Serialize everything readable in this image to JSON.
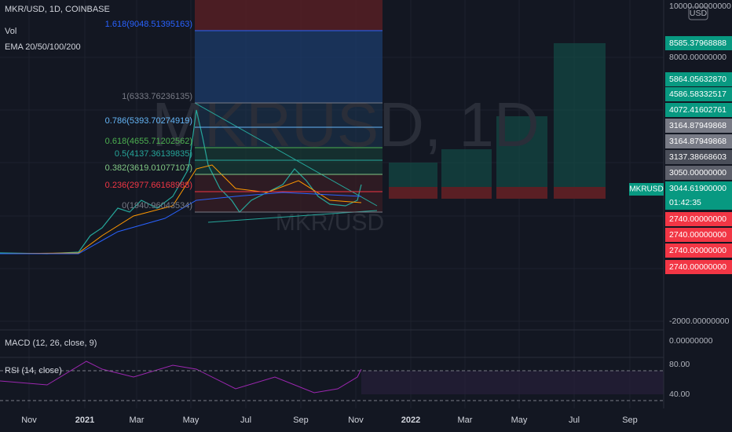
{
  "header": {
    "symbol": "MKR/USD, 1D, COINBASE",
    "volume": "Vol",
    "ema": "EMA 20/50/100/200"
  },
  "watermark": {
    "big": "MKRUSD, 1D",
    "small": "MKR/USD"
  },
  "fib_levels": [
    {
      "label": "1.618(9048.51395163)",
      "color": "#2962ff"
    },
    {
      "label": "1(6333.76236135)",
      "color": "#787b86"
    },
    {
      "label": "0.786(5393.70274919)",
      "color": "#64b5f6"
    },
    {
      "label": "0.618(4655.71202562)",
      "color": "#4caf50"
    },
    {
      "label": "0.5(4137.36139835)",
      "color": "#26a69a"
    },
    {
      "label": "0.382(3619.01077107)",
      "color": "#81c784"
    },
    {
      "label": "0.236(2977.66168988)",
      "color": "#f23645"
    },
    {
      "label": "0(1940.96043534)",
      "color": "#787b86"
    }
  ],
  "price_axis": [
    {
      "text": "10000.00000000",
      "color": null
    },
    {
      "text": "USD",
      "color": null
    },
    {
      "text": "8585.37968888",
      "color": "#089981"
    },
    {
      "text": "8000.00000000",
      "color": null
    },
    {
      "text": "5864.05632870",
      "color": "#089981"
    },
    {
      "text": "4586.58332517",
      "color": "#089981"
    },
    {
      "text": "4072.41602761",
      "color": "#089981"
    },
    {
      "text": "3164.87949868",
      "color": "#787b86"
    },
    {
      "text": "3164.87949868",
      "color": "#787b86"
    },
    {
      "text": "3137.38668603",
      "color": "#4a4e59"
    },
    {
      "text": "3050.00000000",
      "color": "#5d606b"
    },
    {
      "text": "3044.61900000",
      "color": "#089981"
    },
    {
      "text": "01:42:35",
      "color": "#089981"
    },
    {
      "text": "2740.00000000",
      "color": "#f23645"
    },
    {
      "text": "2740.00000000",
      "color": "#f23645"
    },
    {
      "text": "2740.00000000",
      "color": "#f23645"
    },
    {
      "text": "2740.00000000",
      "color": "#f23645"
    },
    {
      "text": "-2000.00000000",
      "color": null
    },
    {
      "text": "0.00000000",
      "color": null
    },
    {
      "text": "80.00",
      "color": null
    },
    {
      "text": "40.00",
      "color": null
    }
  ],
  "symbol_badge": "MKRUSD",
  "panes": {
    "macd": "MACD (12, 26, close, 9)",
    "rsi": "RSI (14, close)"
  },
  "time_axis": [
    "Nov",
    "2021",
    "Mar",
    "May",
    "Jul",
    "Sep",
    "Nov",
    "2022",
    "Mar",
    "May",
    "Jul",
    "Sep"
  ]
}
